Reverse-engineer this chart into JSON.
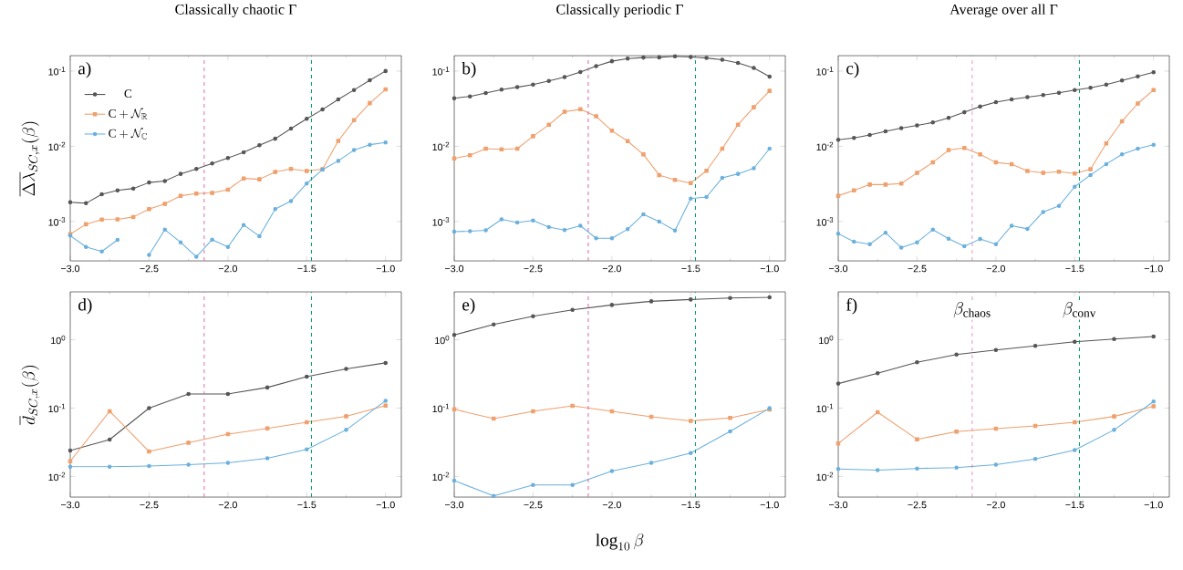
{
  "chart_data": [
    {
      "type": "line",
      "title": "Classically chaotic Γ",
      "ylabel": "\\overline{\\Delta\\lambda}_{SC,x}(\\beta)",
      "annotations": [
        "a)"
      ],
      "log": "y",
      "legend": "top left",
      "x": [
        -3.0,
        -2.9,
        -2.8,
        -2.7,
        -2.6,
        -2.5,
        -2.4,
        -2.3,
        -2.2,
        -2.1,
        -2.0,
        -1.9,
        -1.8,
        -1.7,
        -1.6,
        -1.5,
        -1.4,
        -1.3,
        -1.2,
        -1.1,
        -1.0
      ],
      "xlim": [
        -3.0,
        -0.9
      ],
      "xticks": [
        {
          "value": -3.0,
          "label": "−3.0"
        },
        {
          "value": -2.5,
          "label": "−2.5"
        },
        {
          "value": -2.0,
          "label": "−2.0"
        },
        {
          "value": -1.5,
          "label": "−1.5"
        },
        {
          "value": -1.0,
          "label": "−1.0"
        }
      ],
      "ylim": [
        0.0003,
        0.16
      ],
      "yticks": [
        {
          "value": 0.001,
          "label": "10$^{-3}$"
        },
        {
          "value": 0.01,
          "label": "10$^{-2}$"
        },
        {
          "value": 0.1,
          "label": "10$^{-1}$"
        }
      ],
      "ref_lines": [
        {
          "axis": "x",
          "value": -2.15,
          "color": "#d670ac",
          "line_style": "dashed"
        },
        {
          "axis": "x",
          "value": -1.47,
          "color": "#0e9c70",
          "line_style": "dashed"
        }
      ],
      "series": [
        {
          "name": "\\mathrm{C}",
          "color": "#555555",
          "marker": "circle",
          "values": [
            0.0018,
            0.00175,
            0.0023,
            0.0026,
            0.00275,
            0.0033,
            0.00345,
            0.0043,
            0.005,
            0.0059,
            0.007,
            0.0083,
            0.0103,
            0.0126,
            0.0172,
            0.0232,
            0.0308,
            0.042,
            0.056,
            0.0755,
            0.1
          ]
        },
        {
          "name": "\\mathrm{C}+\\mathcal{N}_{\\mathbb{R}}",
          "color": "#eea06e",
          "marker": "square",
          "values": [
            0.00068,
            0.00092,
            0.00106,
            0.00107,
            0.00115,
            0.00146,
            0.00172,
            0.0022,
            0.00235,
            0.0024,
            0.00265,
            0.00374,
            0.00364,
            0.00456,
            0.005,
            0.0047,
            0.00495,
            0.0118,
            0.0222,
            0.0374,
            0.057
          ]
        },
        {
          "name": "\\mathrm{C}+\\mathcal{N}_{\\mathbb{C}}",
          "color": "#6ab0dc",
          "marker": "circle",
          "values": [
            0.00065,
            0.00046,
            0.0004,
            0.00057,
            null,
            0.00036,
            0.00078,
            0.00053,
            0.00034,
            0.000575,
            0.00046,
            0.0009,
            0.00064,
            0.00146,
            0.00187,
            0.0032,
            0.0049,
            0.0064,
            0.0089,
            0.0105,
            0.0112
          ]
        }
      ]
    },
    {
      "type": "line",
      "title": "Classically periodic Γ",
      "annotations": [
        "b)"
      ],
      "log": "y",
      "x": [
        -3.0,
        -2.9,
        -2.8,
        -2.7,
        -2.6,
        -2.5,
        -2.4,
        -2.3,
        -2.2,
        -2.1,
        -2.0,
        -1.9,
        -1.8,
        -1.7,
        -1.6,
        -1.5,
        -1.4,
        -1.3,
        -1.2,
        -1.1,
        -1.0
      ],
      "xlim": [
        -3.0,
        -0.9
      ],
      "xticks": [
        {
          "value": -3.0,
          "label": "−3.0"
        },
        {
          "value": -2.5,
          "label": "−2.5"
        },
        {
          "value": -2.0,
          "label": "−2.0"
        },
        {
          "value": -1.5,
          "label": "−1.5"
        },
        {
          "value": -1.0,
          "label": "−1.0"
        }
      ],
      "ylim": [
        0.0003,
        0.16
      ],
      "yticks": [
        {
          "value": 0.001,
          "label": "10$^{-3}$"
        },
        {
          "value": 0.01,
          "label": "10$^{-2}$"
        },
        {
          "value": 0.1,
          "label": "10$^{-1}$"
        }
      ],
      "ref_lines": [
        {
          "axis": "x",
          "value": -2.15,
          "color": "#d670ac",
          "line_style": "dashed"
        },
        {
          "axis": "x",
          "value": -1.47,
          "color": "#0e9c70",
          "line_style": "dashed"
        }
      ],
      "series": [
        {
          "color": "#555555",
          "marker": "circle",
          "values": [
            0.0435,
            0.046,
            0.051,
            0.0565,
            0.061,
            0.066,
            0.074,
            0.083,
            0.097,
            0.116,
            0.135,
            0.146,
            0.151,
            0.152,
            0.157,
            0.154,
            0.149,
            0.141,
            0.128,
            0.11,
            0.0845
          ]
        },
        {
          "color": "#eea06e",
          "marker": "square",
          "values": [
            0.0069,
            0.0076,
            0.0093,
            0.0091,
            0.0093,
            0.0136,
            0.0193,
            0.0288,
            0.031,
            0.025,
            0.0161,
            0.0117,
            0.0078,
            0.00415,
            0.00357,
            0.00325,
            0.00473,
            0.0093,
            0.0194,
            0.033,
            0.0545
          ]
        },
        {
          "color": "#6ab0dc",
          "marker": "circle",
          "values": [
            0.000735,
            0.000745,
            0.000765,
            0.00107,
            0.00097,
            0.00103,
            0.000845,
            0.00077,
            0.00088,
            0.0006,
            0.0006,
            0.00079,
            0.00125,
            0.001,
            0.00076,
            0.00202,
            0.00212,
            0.0038,
            0.0043,
            0.0051,
            0.0093
          ]
        }
      ]
    },
    {
      "type": "line",
      "title": "Average over all Γ",
      "annotations": [
        "c)"
      ],
      "log": "y",
      "x": [
        -3.0,
        -2.9,
        -2.8,
        -2.7,
        -2.6,
        -2.5,
        -2.4,
        -2.3,
        -2.2,
        -2.1,
        -2.0,
        -1.9,
        -1.8,
        -1.7,
        -1.6,
        -1.5,
        -1.4,
        -1.3,
        -1.2,
        -1.1,
        -1.0
      ],
      "xlim": [
        -3.0,
        -0.9
      ],
      "xticks": [
        {
          "value": -3.0,
          "label": "−3.0"
        },
        {
          "value": -2.5,
          "label": "−2.5"
        },
        {
          "value": -2.0,
          "label": "−2.0"
        },
        {
          "value": -1.5,
          "label": "−1.5"
        },
        {
          "value": -1.0,
          "label": "−1.0"
        }
      ],
      "ylim": [
        0.0003,
        0.16
      ],
      "yticks": [
        {
          "value": 0.001,
          "label": "10$^{-3}$"
        },
        {
          "value": 0.01,
          "label": "10$^{-2}$"
        },
        {
          "value": 0.1,
          "label": "10$^{-1}$"
        }
      ],
      "ref_lines": [
        {
          "axis": "x",
          "value": -2.15,
          "color": "#d670ac",
          "line_style": "dashed"
        },
        {
          "axis": "x",
          "value": -1.47,
          "color": "#0e9c70",
          "line_style": "dashed"
        }
      ],
      "series": [
        {
          "color": "#555555",
          "marker": "circle",
          "values": [
            0.0122,
            0.0129,
            0.0141,
            0.0158,
            0.0174,
            0.0189,
            0.0207,
            0.0239,
            0.0283,
            0.0337,
            0.0385,
            0.042,
            0.045,
            0.048,
            0.0514,
            0.056,
            0.06,
            0.066,
            0.075,
            0.085,
            0.096
          ]
        },
        {
          "color": "#eea06e",
          "marker": "square",
          "values": [
            0.0022,
            0.0026,
            0.0031,
            0.0031,
            0.0032,
            0.00443,
            0.0061,
            0.0089,
            0.0095,
            0.0078,
            0.0061,
            0.0058,
            0.0047,
            0.00443,
            0.0046,
            0.00435,
            0.00495,
            0.0109,
            0.0215,
            0.037,
            0.056
          ]
        },
        {
          "color": "#6ab0dc",
          "marker": "circle",
          "values": [
            0.00069,
            0.00054,
            0.0005,
            0.00071,
            0.00045,
            0.00053,
            0.00078,
            0.00059,
            0.00047,
            0.000585,
            0.0005,
            0.00088,
            0.0008,
            0.00134,
            0.00161,
            0.0029,
            0.00415,
            0.0058,
            0.0078,
            0.0093,
            0.0105
          ]
        }
      ]
    },
    {
      "type": "line",
      "ylabel": "\\overline{d}_{SC,x}(\\beta)",
      "annotations": [
        "d)"
      ],
      "log": "y",
      "x": [
        -3.0,
        -2.75,
        -2.5,
        -2.25,
        -2.0,
        -1.75,
        -1.5,
        -1.25,
        -1.0
      ],
      "xlim": [
        -3.0,
        -0.9
      ],
      "xticks": [
        {
          "value": -3.0,
          "label": "−3.0"
        },
        {
          "value": -2.5,
          "label": "−2.5"
        },
        {
          "value": -2.0,
          "label": "−2.0"
        },
        {
          "value": -1.5,
          "label": "−1.5"
        },
        {
          "value": -1.0,
          "label": "−1.0"
        }
      ],
      "ylim": [
        0.005,
        5
      ],
      "yticks": [
        {
          "value": 0.01,
          "label": "10$^{-2}$"
        },
        {
          "value": 0.1,
          "label": "10$^{-1}$"
        },
        {
          "value": 1,
          "label": "10$^{0}$"
        }
      ],
      "ref_lines": [
        {
          "axis": "x",
          "value": -2.15,
          "color": "#d670ac",
          "line_style": "dashed"
        },
        {
          "axis": "x",
          "value": -1.47,
          "color": "#0e9c70",
          "line_style": "dashed"
        }
      ],
      "series": [
        {
          "color": "#555555",
          "marker": "circle",
          "values": [
            0.024,
            0.0346,
            0.1,
            0.161,
            0.161,
            0.2,
            0.289,
            0.373,
            0.458
          ]
        },
        {
          "color": "#eea06e",
          "marker": "square",
          "values": [
            0.0167,
            0.09,
            0.0232,
            0.0312,
            0.0416,
            0.0506,
            0.062,
            0.076,
            0.109
          ]
        },
        {
          "color": "#6ab0dc",
          "marker": "circle",
          "values": [
            0.0139,
            0.0139,
            0.0142,
            0.0149,
            0.0158,
            0.0185,
            0.0249,
            0.048,
            0.128
          ]
        }
      ]
    },
    {
      "type": "line",
      "xlabel": "\\log_{10}\\beta",
      "annotations": [
        "e)"
      ],
      "log": "y",
      "x": [
        -3.0,
        -2.75,
        -2.5,
        -2.25,
        -2.0,
        -1.75,
        -1.5,
        -1.25,
        -1.0
      ],
      "xlim": [
        -3.0,
        -0.9
      ],
      "xticks": [
        {
          "value": -3.0,
          "label": "−3.0"
        },
        {
          "value": -2.5,
          "label": "−2.5"
        },
        {
          "value": -2.0,
          "label": "−2.0"
        },
        {
          "value": -1.5,
          "label": "−1.5"
        },
        {
          "value": -1.0,
          "label": "−1.0"
        }
      ],
      "ylim": [
        0.005,
        5
      ],
      "yticks": [
        {
          "value": 0.01,
          "label": "10$^{-2}$"
        },
        {
          "value": 0.1,
          "label": "10$^{-1}$"
        },
        {
          "value": 1,
          "label": "10$^{0}$"
        }
      ],
      "ref_lines": [
        {
          "axis": "x",
          "value": -2.15,
          "color": "#d670ac",
          "line_style": "dashed"
        },
        {
          "axis": "x",
          "value": -1.47,
          "color": "#0e9c70",
          "line_style": "dashed"
        }
      ],
      "series": [
        {
          "color": "#555555",
          "marker": "circle",
          "values": [
            1.17,
            1.67,
            2.2,
            2.73,
            3.22,
            3.64,
            3.87,
            4.08,
            4.16
          ]
        },
        {
          "color": "#eea06e",
          "marker": "square",
          "values": [
            0.096,
            0.07,
            0.0897,
            0.108,
            0.0897,
            0.0746,
            0.065,
            0.072,
            0.0955
          ]
        },
        {
          "color": "#6ab0dc",
          "marker": "circle",
          "values": [
            0.0087,
            0.0052,
            0.0075,
            0.0075,
            0.012,
            0.0158,
            0.022,
            0.0456,
            0.0995
          ]
        }
      ]
    },
    {
      "type": "line",
      "annotations": [
        "f)"
      ],
      "log": "y",
      "x": [
        -3.0,
        -2.75,
        -2.5,
        -2.25,
        -2.0,
        -1.75,
        -1.5,
        -1.25,
        -1.0
      ],
      "xlim": [
        -3.0,
        -0.9
      ],
      "xticks": [
        {
          "value": -3.0,
          "label": "−3.0"
        },
        {
          "value": -2.5,
          "label": "−2.5"
        },
        {
          "value": -2.0,
          "label": "−2.0"
        },
        {
          "value": -1.5,
          "label": "−1.5"
        },
        {
          "value": -1.0,
          "label": "−1.0"
        }
      ],
      "ylim": [
        0.005,
        5
      ],
      "yticks": [
        {
          "value": 0.01,
          "label": "10$^{-2}$"
        },
        {
          "value": 0.1,
          "label": "10$^{-1}$"
        },
        {
          "value": 1,
          "label": "10$^{0}$"
        }
      ],
      "ref_lines": [
        {
          "axis": "x",
          "value": -2.15,
          "color": "#d670ac",
          "line_style": "dashed",
          "label": "\\beta_{\\mathrm{chaos}}"
        },
        {
          "axis": "x",
          "value": -1.47,
          "color": "#0e9c70",
          "line_style": "dashed",
          "label": "\\beta_{\\mathrm{conv}}"
        }
      ],
      "series": [
        {
          "color": "#555555",
          "marker": "circle",
          "values": [
            0.228,
            0.323,
            0.467,
            0.605,
            0.706,
            0.814,
            0.93,
            1.02,
            1.11
          ]
        },
        {
          "color": "#eea06e",
          "marker": "square",
          "values": [
            0.0303,
            0.087,
            0.035,
            0.0452,
            0.05,
            0.055,
            0.062,
            0.0755,
            0.106
          ]
        },
        {
          "color": "#6ab0dc",
          "marker": "circle",
          "values": [
            0.0129,
            0.0124,
            0.0131,
            0.0135,
            0.0149,
            0.018,
            0.0244,
            0.048,
            0.125
          ]
        }
      ]
    }
  ]
}
